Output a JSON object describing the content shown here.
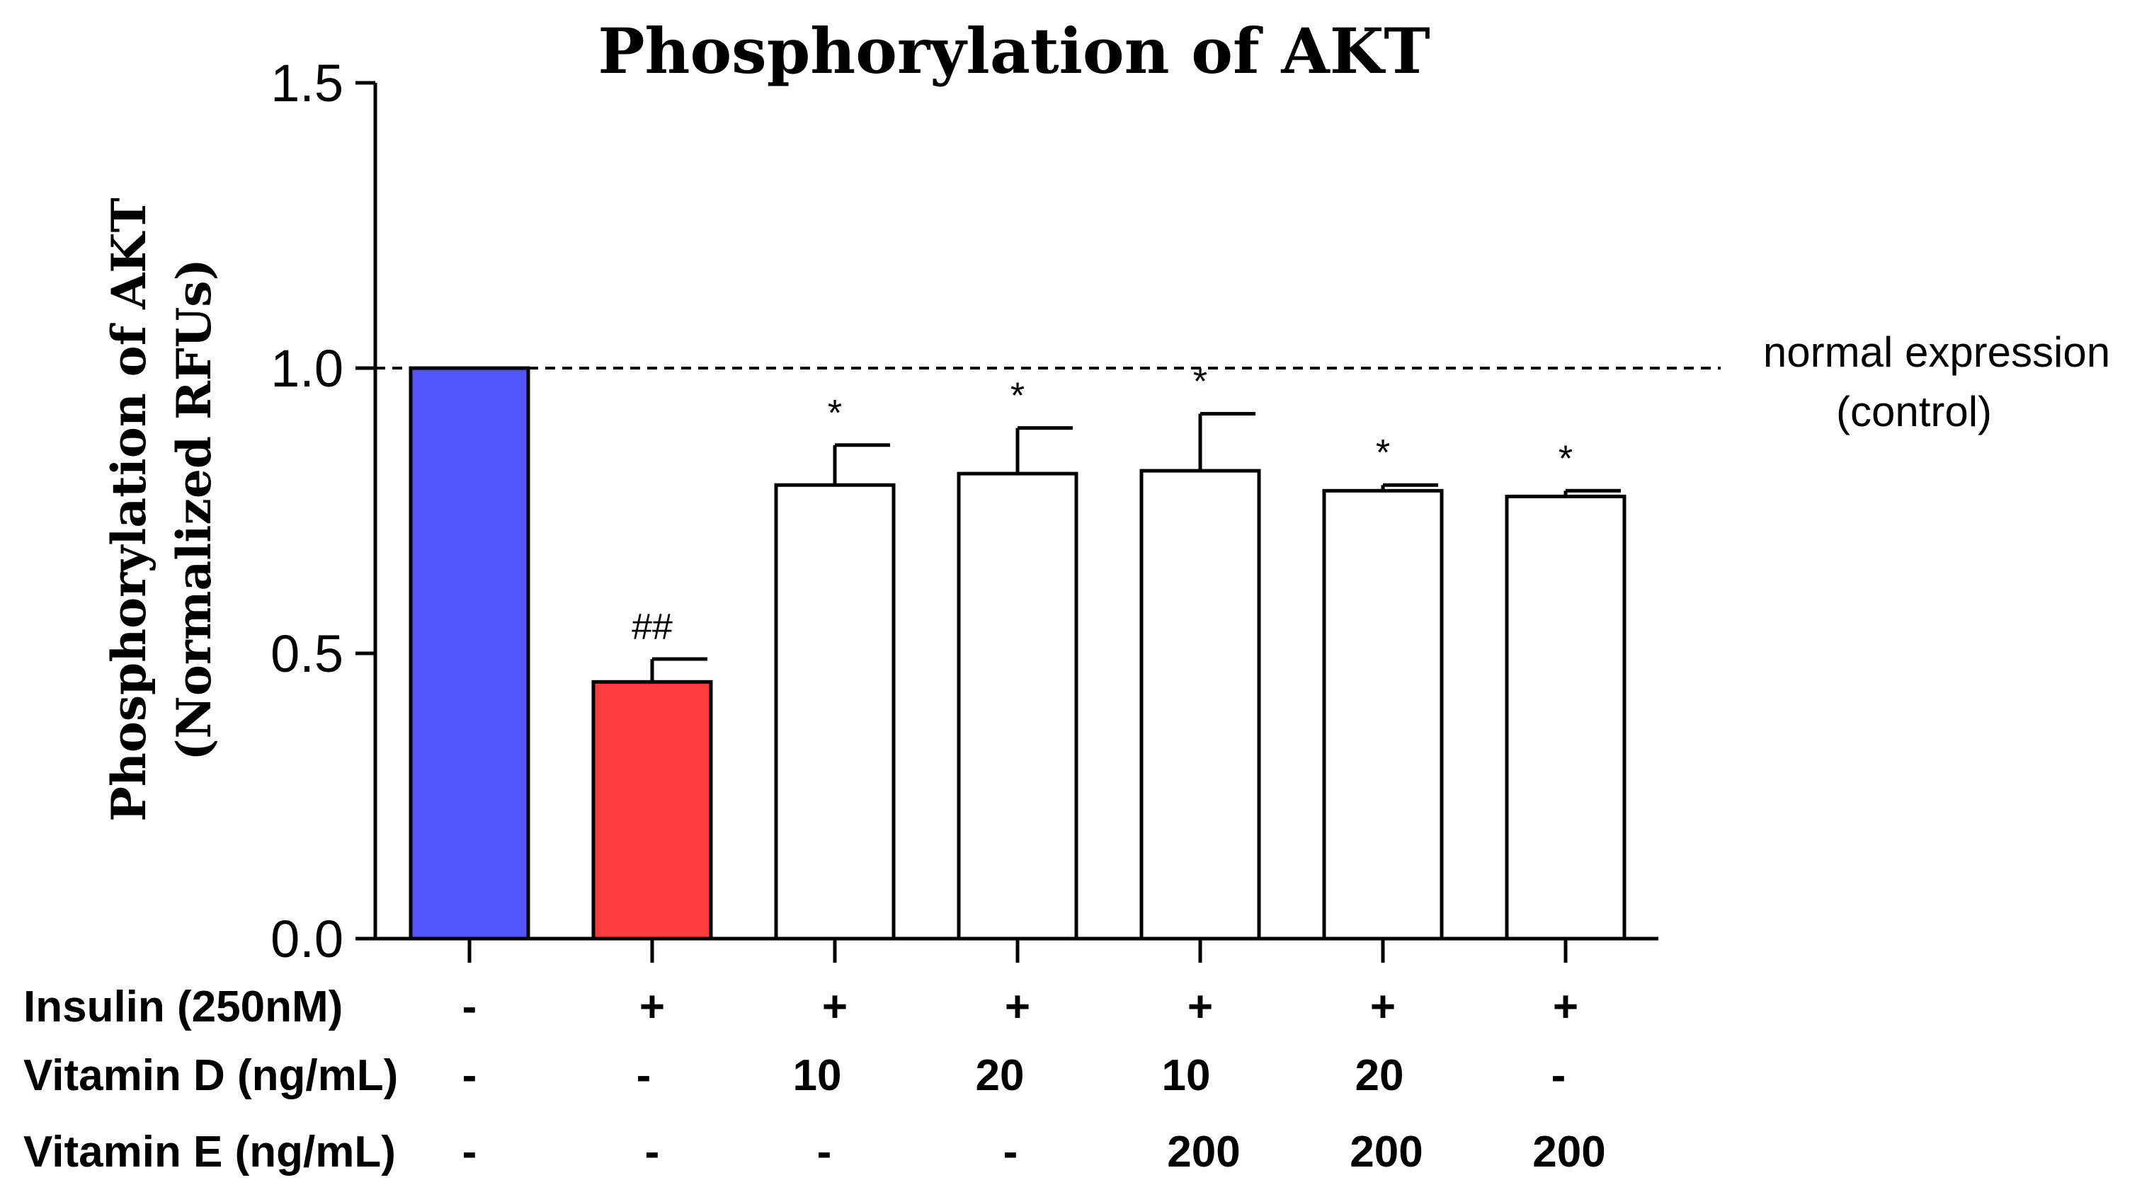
{
  "chart_data": {
    "type": "bar",
    "title": "Phosphorylation of AKT",
    "ylabel_lines": [
      "Phosphorylation of AKT",
      "(Normalized RFUs)"
    ],
    "xlabel": "",
    "ylim": [
      0,
      1.5
    ],
    "yticks": [
      "0.0",
      "0.5",
      "1.0",
      "1.5"
    ],
    "ytick_values": [
      0,
      0.5,
      1.0,
      1.5
    ],
    "values": [
      1.0,
      0.45,
      0.795,
      0.815,
      0.82,
      0.785,
      0.775
    ],
    "errors": [
      0,
      0.04,
      0.07,
      0.08,
      0.1,
      0.01,
      0.01
    ],
    "bar_colors": [
      "#5555ff",
      "#ff3a3a",
      "#ffffff",
      "#ffffff",
      "#ffffff",
      "#ffffff",
      "#ffffff"
    ],
    "annotations": [
      "",
      "##",
      "*",
      "*",
      "*",
      "*",
      "*"
    ],
    "reference_line": {
      "value": 1.0,
      "label_lines": [
        "normal expression",
        "(control)"
      ]
    },
    "treatment_rows": [
      {
        "label": "Insulin (250nM)",
        "cells": [
          "-",
          "+",
          "+",
          "+",
          "+",
          "+",
          "+"
        ]
      },
      {
        "label": "Vitamin D (ng/mL)",
        "cells": [
          "-",
          "-",
          "10",
          "20",
          "10",
          "20",
          "-"
        ]
      },
      {
        "label": "Vitamin E (ng/mL)",
        "cells": [
          "-",
          "-",
          "-",
          "-",
          "200",
          "200",
          "200"
        ]
      }
    ]
  }
}
